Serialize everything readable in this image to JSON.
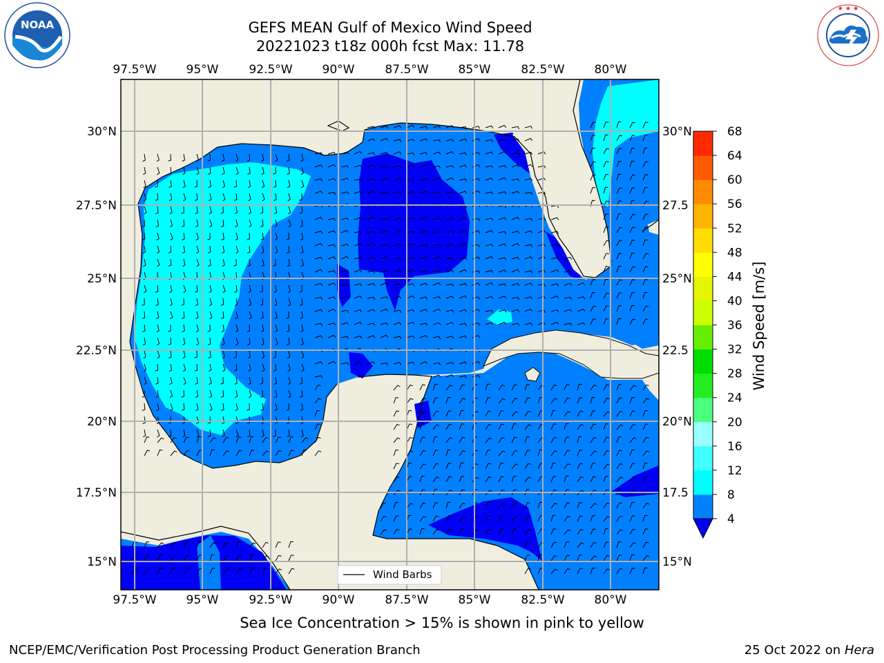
{
  "header": {
    "title_line1": "GEFS MEAN Gulf of Mexico Wind Speed",
    "title_line2": "20221023 t18z 000h fcst   Max: 11.78"
  },
  "logos": {
    "left_label": "NOAA",
    "left_ring_text": "NATIONAL OCEANIC AND ATMOSPHERIC ADMINISTRATION · U.S. DEPARTMENT OF COMMERCE",
    "right_ring_text": "NATIONAL WEATHER SERVICE"
  },
  "map": {
    "lon_labels": [
      "97.5°W",
      "95°W",
      "92.5°W",
      "90°W",
      "87.5°W",
      "85°W",
      "82.5°W",
      "80°W"
    ],
    "lat_labels_left": [
      "30°N",
      "27.5°N",
      "25°N",
      "22.5°N",
      "20°N",
      "17.5°N",
      "15°N"
    ],
    "lat_labels_right": [
      "30°N",
      "27.5",
      "25°N",
      "22.5",
      "20°N",
      "17.5",
      "15°N"
    ],
    "legend_label": "Wind Barbs",
    "colors": {
      "land": "#efedde",
      "grid": "#b0b0b0",
      "speed_lt4": "#0000f5",
      "speed_4_8": "#0080ff",
      "speed_8_12": "#00ffff"
    }
  },
  "colorbar": {
    "label": "Wind Speed [m/s]",
    "ticks": [
      "4",
      "8",
      "12",
      "16",
      "20",
      "24",
      "28",
      "32",
      "36",
      "40",
      "44",
      "48",
      "52",
      "56",
      "60",
      "64",
      "68"
    ],
    "colors": [
      "#0080ff",
      "#00ffff",
      "#3fffff",
      "#99ffff",
      "#4cff80",
      "#22ee22",
      "#00dd00",
      "#66ee00",
      "#ccff00",
      "#e6f500",
      "#ffff00",
      "#ffdd00",
      "#ffb400",
      "#ff8c00",
      "#ff5a00",
      "#ff2a00",
      "#ff0000"
    ],
    "under_color": "#0000f5"
  },
  "footer": {
    "note": "Sea Ice Concentration > 15% is shown in pink to yellow",
    "credit": "NCEP/EMC/Verification Post Processing Product Generation Branch",
    "date_prefix": "25 Oct 2022 on ",
    "date_host": "Hera"
  }
}
